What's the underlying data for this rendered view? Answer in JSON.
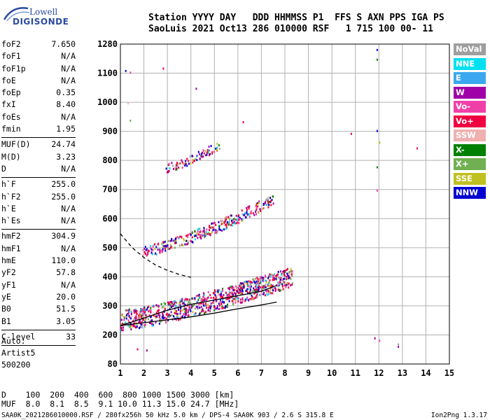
{
  "logo": {
    "line1": "Lowell",
    "line2": "DIGISONDE"
  },
  "header": {
    "row1": "Station YYYY DAY   DDD HHMMSS P1  FFS S AXN PPS IGA PS",
    "row2": "SaoLuis 2021 Oct13 286 010000 RSF   1 715 100 00- 11"
  },
  "params": {
    "group1": [
      {
        "k": "foF2",
        "v": "7.650"
      },
      {
        "k": "foF1",
        "v": "N/A"
      },
      {
        "k": "foF1p",
        "v": "N/A"
      },
      {
        "k": "foE",
        "v": "N/A"
      },
      {
        "k": "foEp",
        "v": "0.35"
      },
      {
        "k": "fxI",
        "v": "8.40"
      },
      {
        "k": "foEs",
        "v": "N/A"
      },
      {
        "k": "fmin",
        "v": "1.95"
      }
    ],
    "group2": [
      {
        "k": "MUF(D)",
        "v": "24.74"
      },
      {
        "k": "M(D)",
        "v": "3.23"
      },
      {
        "k": "D",
        "v": "N/A"
      }
    ],
    "group3": [
      {
        "k": "h`F",
        "v": "255.0"
      },
      {
        "k": "h`F2",
        "v": "255.0"
      },
      {
        "k": "h`E",
        "v": "N/A"
      },
      {
        "k": "h`Es",
        "v": "N/A"
      }
    ],
    "group4": [
      {
        "k": "hmF2",
        "v": "304.9"
      },
      {
        "k": "hmF1",
        "v": "N/A"
      },
      {
        "k": "hmE",
        "v": "110.0"
      },
      {
        "k": "yF2",
        "v": "57.8"
      },
      {
        "k": "yF1",
        "v": "N/A"
      },
      {
        "k": "yE",
        "v": "20.0"
      },
      {
        "k": "B0",
        "v": "51.5"
      },
      {
        "k": "B1",
        "v": "3.05"
      }
    ],
    "group5": [
      {
        "k": "C-level",
        "v": "33"
      }
    ]
  },
  "auto": {
    "line1": "Auto:",
    "line2": "Artist5",
    "line3": "500200"
  },
  "legend": [
    {
      "label": "NoVal",
      "color": "#9e9e9e"
    },
    {
      "label": "NNE",
      "color": "#00e0f0"
    },
    {
      "label": "E",
      "color": "#3aa8f0"
    },
    {
      "label": "W",
      "color": "#a000a8"
    },
    {
      "label": "Vo-",
      "color": "#f040a8"
    },
    {
      "label": "Vo+",
      "color": "#f00040"
    },
    {
      "label": "SSW",
      "color": "#f0b0b0"
    },
    {
      "label": "X-",
      "color": "#008000"
    },
    {
      "label": "X+",
      "color": "#70b050"
    },
    {
      "label": "SSE",
      "color": "#c0c020"
    },
    {
      "label": "NNW",
      "color": "#0000d0"
    }
  ],
  "dtable": {
    "row1": "D    100  200  400  600  800 1000 1500 3000 [km]",
    "row2": "MUF  8.0  8.1  8.5  9.1 10.0 11.3 15.0 24.7 [MHz]"
  },
  "footer": "SAA0K_2021286010000.RSF / 280fx256h 50 kHz 5.0 km / DPS-4 SAA0K 903 / 2.6 S 315.8 E",
  "version": "Ion2Png 1.3.17",
  "chart_data": {
    "type": "scatter",
    "x_range": [
      1,
      15
    ],
    "y_range": [
      80,
      1280
    ],
    "x_ticks": [
      1,
      2,
      3,
      4,
      5,
      6,
      7,
      8,
      9,
      10,
      11,
      12,
      13,
      14,
      15
    ],
    "y_ticks": [
      80,
      200,
      300,
      400,
      500,
      600,
      700,
      800,
      900,
      1000,
      1100,
      1280
    ],
    "grid": true,
    "clusters": [
      {
        "name": "F-trace",
        "x_range": [
          1.0,
          8.3
        ],
        "h_start": 240,
        "h_end": 390,
        "spread": 70,
        "density": 900
      },
      {
        "name": "multi-hop",
        "x_range": [
          1.9,
          7.5
        ],
        "h_start": 480,
        "h_end": 660,
        "spread": 40,
        "density": 320
      },
      {
        "name": "third-hop",
        "x_range": [
          2.9,
          5.2
        ],
        "h_start": 770,
        "h_end": 850,
        "spread": 30,
        "density": 90
      }
    ],
    "fitted_profile": [
      [
        1.0,
        232
      ],
      [
        2.0,
        242
      ],
      [
        3.0,
        252
      ],
      [
        4.0,
        262
      ],
      [
        5.0,
        275
      ],
      [
        6.0,
        290
      ],
      [
        7.0,
        303
      ],
      [
        7.65,
        313
      ]
    ],
    "dashed_curve": [
      [
        1.0,
        548
      ],
      [
        1.5,
        500
      ],
      [
        2.0,
        466
      ],
      [
        2.5,
        440
      ],
      [
        3.0,
        422
      ],
      [
        3.5,
        408
      ],
      [
        4.0,
        398
      ]
    ],
    "upper_trace": [
      [
        1.0,
        232
      ],
      [
        2.0,
        258
      ],
      [
        3.0,
        285
      ],
      [
        4.0,
        305
      ],
      [
        5.0,
        320
      ],
      [
        6.0,
        335
      ],
      [
        7.0,
        350
      ],
      [
        7.65,
        370
      ]
    ],
    "sparse_points": [
      {
        "x": 1.2,
        "y": 1120
      },
      {
        "x": 1.4,
        "y": 1110
      },
      {
        "x": 1.3,
        "y": 1000
      },
      {
        "x": 1.4,
        "y": 940
      },
      {
        "x": 2.8,
        "y": 1135
      },
      {
        "x": 4.2,
        "y": 1050
      },
      {
        "x": 6.2,
        "y": 935
      },
      {
        "x": 10.8,
        "y": 895
      },
      {
        "x": 11.9,
        "y": 1250
      },
      {
        "x": 11.9,
        "y": 1190
      },
      {
        "x": 11.9,
        "y": 905
      },
      {
        "x": 12.0,
        "y": 865
      },
      {
        "x": 11.9,
        "y": 780
      },
      {
        "x": 11.9,
        "y": 700
      },
      {
        "x": 11.8,
        "y": 190
      },
      {
        "x": 12.0,
        "y": 180
      },
      {
        "x": 12.8,
        "y": 165
      },
      {
        "x": 12.8,
        "y": 155
      },
      {
        "x": 13.6,
        "y": 845
      },
      {
        "x": 2.1,
        "y": 140
      },
      {
        "x": 1.7,
        "y": 145
      }
    ]
  }
}
